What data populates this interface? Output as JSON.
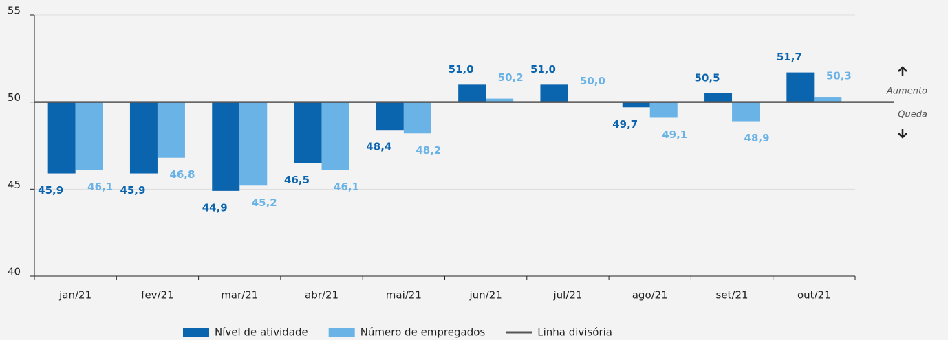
{
  "chart_data": {
    "type": "bar",
    "categories": [
      "jan/21",
      "fev/21",
      "mar/21",
      "abr/21",
      "mai/21",
      "jun/21",
      "jul/21",
      "ago/21",
      "set/21",
      "out/21"
    ],
    "series": [
      {
        "name": "Nível de atividade",
        "color": "#0b64ae",
        "values": [
          45.9,
          45.9,
          44.9,
          46.5,
          48.4,
          51.0,
          51.0,
          49.7,
          50.5,
          51.7
        ],
        "value_labels": [
          "45,9",
          "45,9",
          "44,9",
          "46,5",
          "48,4",
          "51,0",
          "51,0",
          "49,7",
          "50,5",
          "51,7"
        ]
      },
      {
        "name": "Número de empregados",
        "color": "#6ab3e6",
        "values": [
          46.1,
          46.8,
          45.2,
          46.1,
          48.2,
          50.2,
          50.0,
          49.1,
          48.9,
          50.3
        ],
        "value_labels": [
          "46,1",
          "46,8",
          "45,2",
          "46,1",
          "48,2",
          "50,2",
          "50,0",
          "49,1",
          "48,9",
          "50,3"
        ]
      }
    ],
    "baseline": 50,
    "baseline_name": "Linha divisória",
    "baseline_color": "#555555",
    "annotations": [
      "Aumento",
      "Queda"
    ],
    "ylim": [
      40,
      55
    ],
    "yticks": [
      40,
      45,
      50,
      55
    ],
    "grid": true
  }
}
